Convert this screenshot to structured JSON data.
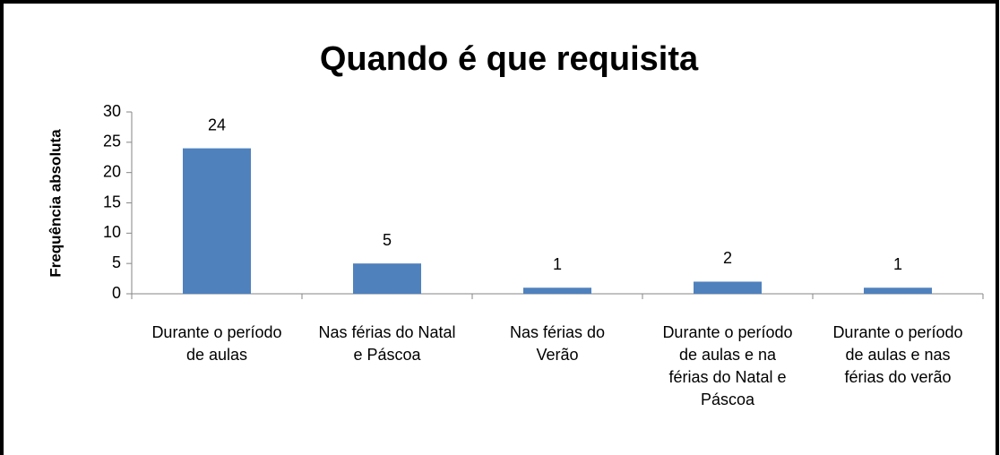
{
  "chart_data": {
    "type": "bar",
    "title": "Quando é que requisita",
    "y_label": "Frequência absoluta",
    "categories": [
      "Durante o período de aulas",
      "Nas férias do Natal e Páscoa",
      "Nas férias do Verão",
      "Durante o período de aulas e na férias do Natal e Páscoa",
      "Durante o período de aulas e nas férias do verão"
    ],
    "values": [
      24,
      5,
      1,
      2,
      1
    ],
    "color": "#4f81bd",
    "ylim": [
      0,
      30
    ],
    "yticks": [
      0,
      5,
      10,
      15,
      20,
      25,
      30
    ],
    "grid": false
  }
}
